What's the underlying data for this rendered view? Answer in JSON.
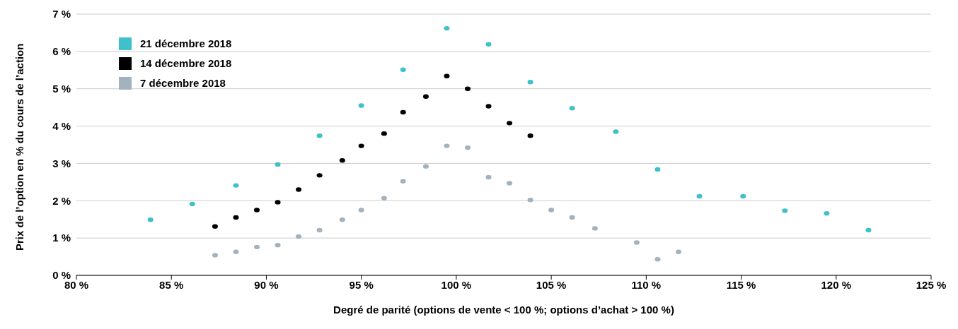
{
  "chart_data": {
    "type": "scatter",
    "xlabel": "Degré de parité (options de vente < 100 %; options d’achat > 100 %)",
    "ylabel": "Prix de l’option en % du cours de l’action",
    "xlim": [
      80,
      125
    ],
    "xticks": [
      {
        "value": 80,
        "label": "80 %"
      },
      {
        "value": 85,
        "label": "85 %"
      },
      {
        "value": 90,
        "label": "90 %"
      },
      {
        "value": 95,
        "label": "95 %"
      },
      {
        "value": 100,
        "label": "100 %"
      },
      {
        "value": 105,
        "label": "105 %"
      },
      {
        "value": 110,
        "label": "110 %"
      },
      {
        "value": 115,
        "label": "115 %"
      },
      {
        "value": 120,
        "label": "120 %"
      },
      {
        "value": 125,
        "label": "125 %"
      }
    ],
    "ylim": [
      0,
      7
    ],
    "yticks": [
      {
        "value": 0,
        "label": "0 %"
      },
      {
        "value": 1,
        "label": "1 %"
      },
      {
        "value": 2,
        "label": "2 %"
      },
      {
        "value": 3,
        "label": "3 %"
      },
      {
        "value": 4,
        "label": "4 %"
      },
      {
        "value": 5,
        "label": "5 %"
      },
      {
        "value": 6,
        "label": "6 %"
      },
      {
        "value": 7,
        "label": "7 %"
      }
    ],
    "grid": "y",
    "legend": "top left",
    "marker": "circle",
    "series": [
      {
        "name": "21 décembre 2018",
        "color": "#3fc1cc",
        "x": [
          83.9,
          86.1,
          88.4,
          90.6,
          92.8,
          95.0,
          97.2,
          99.5,
          101.7,
          103.9,
          106.1,
          108.4,
          110.6,
          112.8,
          115.1,
          117.3,
          119.5,
          121.7
        ],
        "values": [
          1.49,
          1.91,
          2.41,
          2.97,
          3.74,
          4.55,
          5.51,
          6.62,
          6.19,
          5.18,
          4.48,
          3.85,
          2.84,
          2.12,
          2.12,
          1.73,
          1.66,
          1.21
        ]
      },
      {
        "name": "14 décembre 2018",
        "color": "#000000",
        "x": [
          87.3,
          88.4,
          89.5,
          90.6,
          91.7,
          92.8,
          94.0,
          95.0,
          96.2,
          97.2,
          98.4,
          99.5,
          100.6,
          101.7,
          102.8,
          103.9
        ],
        "values": [
          1.31,
          1.55,
          1.75,
          1.96,
          2.3,
          2.68,
          3.08,
          3.47,
          3.8,
          4.37,
          4.79,
          5.34,
          5.0,
          4.53,
          4.08,
          3.74
        ]
      },
      {
        "name": "7 décembre 2018",
        "color": "#a3b3bd",
        "x": [
          87.3,
          88.4,
          89.5,
          90.6,
          91.7,
          92.8,
          94.0,
          95.0,
          96.2,
          97.2,
          98.4,
          99.5,
          100.6,
          101.7,
          102.8,
          103.9,
          105.0,
          106.1,
          107.3,
          109.5,
          110.6,
          111.7
        ],
        "values": [
          0.54,
          0.63,
          0.76,
          0.81,
          1.04,
          1.21,
          1.49,
          1.75,
          2.07,
          2.52,
          2.92,
          3.47,
          3.42,
          2.63,
          2.47,
          2.02,
          1.75,
          1.55,
          1.26,
          0.88,
          0.43,
          0.63
        ]
      }
    ]
  }
}
